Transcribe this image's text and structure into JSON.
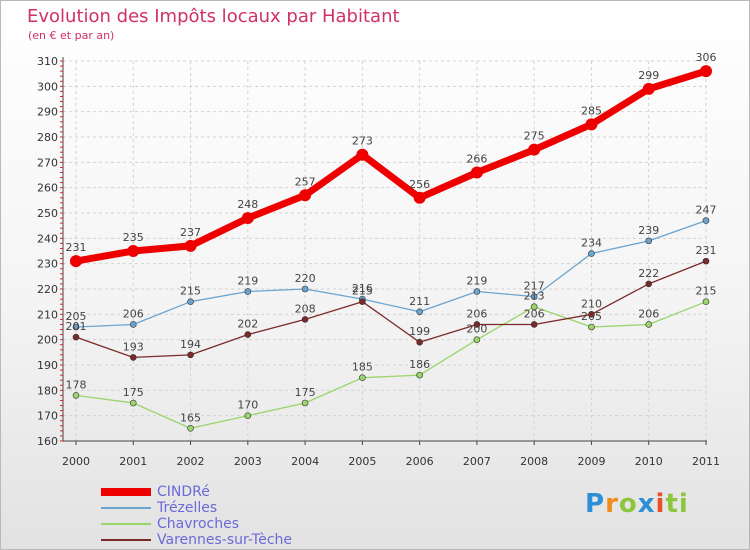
{
  "chart_data": {
    "type": "line",
    "title": "Evolution des Impôts locaux par Habitant",
    "subtitle": "(en € et par an)",
    "xlabel": "",
    "ylabel": "",
    "categories": [
      "2000",
      "2001",
      "2002",
      "2003",
      "2004",
      "2005",
      "2006",
      "2007",
      "2008",
      "2009",
      "2010",
      "2011"
    ],
    "ylim": [
      160,
      310
    ],
    "yticks": [
      160,
      170,
      180,
      190,
      200,
      210,
      220,
      230,
      240,
      250,
      260,
      270,
      280,
      290,
      300,
      310
    ],
    "grid": true,
    "legend_position": "bottom-left",
    "series": [
      {
        "name": "CINDRé",
        "color": "#ee0000",
        "values": [
          231,
          235,
          237,
          248,
          257,
          273,
          256,
          266,
          275,
          285,
          299,
          306
        ]
      },
      {
        "name": "Trézelles",
        "color": "#6aa4cf",
        "values": [
          205,
          206,
          215,
          219,
          220,
          216,
          211,
          219,
          217,
          234,
          239,
          247
        ]
      },
      {
        "name": "Chavroches",
        "color": "#9ad46a",
        "values": [
          178,
          175,
          165,
          170,
          175,
          185,
          186,
          200,
          213,
          205,
          206,
          215
        ]
      },
      {
        "name": "Varennes-sur-Tèche",
        "color": "#7b2a2a",
        "values": [
          201,
          193,
          194,
          202,
          208,
          215,
          199,
          206,
          206,
          210,
          222,
          231
        ]
      }
    ]
  },
  "logo": {
    "letters": [
      "P",
      "r",
      "o",
      "x",
      "i",
      "t",
      "i"
    ]
  }
}
